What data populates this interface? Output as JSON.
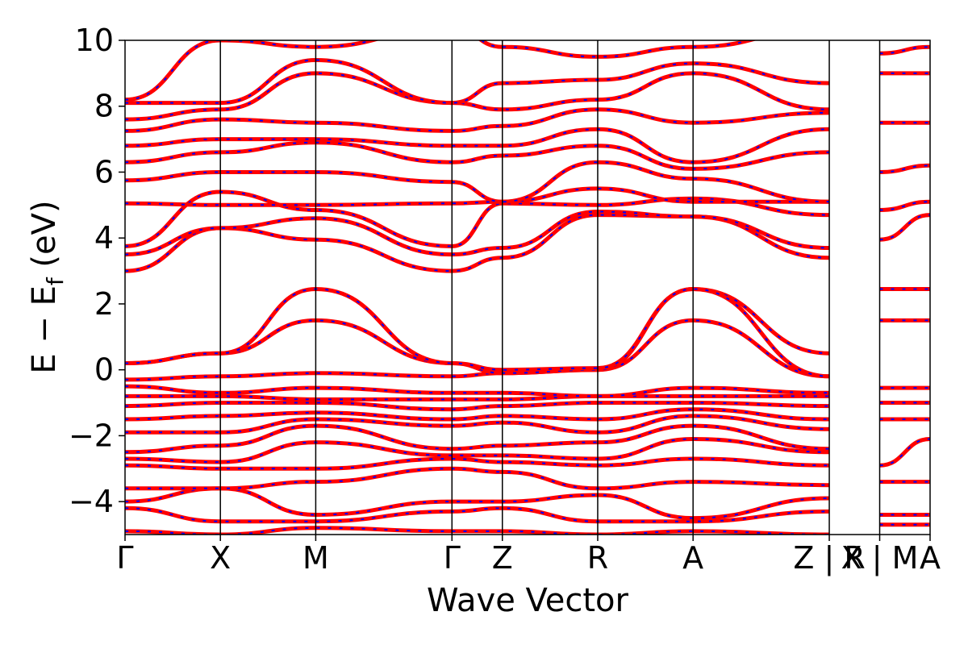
{
  "chart_data": {
    "type": "line",
    "title": "",
    "xlabel": "Wave Vector",
    "ylabel_parts": [
      "E − E",
      "f",
      " (eV)"
    ],
    "ylim": [
      -5,
      10
    ],
    "yticks": [
      "−4",
      "−2",
      "0",
      "2",
      "4",
      "6",
      "8",
      "10"
    ],
    "ytick_values": [
      -4,
      -2,
      0,
      2,
      4,
      6,
      8,
      10
    ],
    "k_path": {
      "positions": [
        0,
        0.7,
        1.4,
        2.4,
        2.77,
        3.47,
        4.17,
        5.17,
        5.54,
        5.91
      ],
      "labels": [
        "Γ",
        "X",
        "M",
        "Γ",
        "Z",
        "R",
        "A",
        "Z | R",
        "X | M",
        "A"
      ]
    },
    "line_colors": {
      "bands": "#ff0000",
      "overlay": "#0000ff"
    },
    "grid": false,
    "bands": [
      {
        "name": "b1",
        "points": [
          [
            0,
            -4.9
          ],
          [
            0.7,
            -5.0
          ],
          [
            1.4,
            -4.8
          ],
          [
            2.4,
            -4.9
          ],
          [
            2.77,
            -4.9
          ],
          [
            3.47,
            -5.0
          ],
          [
            4.17,
            -4.9
          ],
          [
            5.17,
            -5.0
          ]
        ]
      },
      {
        "name": "b2",
        "points": [
          [
            0,
            -4.2
          ],
          [
            0.7,
            -4.6
          ],
          [
            1.4,
            -4.6
          ],
          [
            2.4,
            -4.3
          ],
          [
            2.77,
            -4.2
          ],
          [
            3.47,
            -4.6
          ],
          [
            4.17,
            -4.6
          ],
          [
            5.17,
            -4.3
          ]
        ]
      },
      {
        "name": "b3",
        "points": [
          [
            0,
            -4.0
          ],
          [
            0.7,
            -3.6
          ],
          [
            1.4,
            -4.4
          ],
          [
            2.4,
            -4.0
          ],
          [
            2.77,
            -4.0
          ],
          [
            3.47,
            -3.8
          ],
          [
            4.17,
            -4.5
          ],
          [
            5.17,
            -3.9
          ]
        ]
      },
      {
        "name": "b4",
        "points": [
          [
            0,
            -3.6
          ],
          [
            0.7,
            -3.6
          ],
          [
            1.4,
            -3.4
          ],
          [
            2.4,
            -3.0
          ],
          [
            2.77,
            -3.1
          ],
          [
            3.47,
            -3.6
          ],
          [
            4.17,
            -3.4
          ],
          [
            5.17,
            -3.5
          ]
        ]
      },
      {
        "name": "b5",
        "points": [
          [
            0,
            -2.9
          ],
          [
            0.7,
            -3.0
          ],
          [
            1.4,
            -3.0
          ],
          [
            2.4,
            -2.7
          ],
          [
            2.77,
            -2.8
          ],
          [
            3.47,
            -2.9
          ],
          [
            4.17,
            -2.7
          ],
          [
            5.17,
            -2.9
          ]
        ]
      },
      {
        "name": "b6",
        "points": [
          [
            0,
            -2.7
          ],
          [
            0.7,
            -2.8
          ],
          [
            1.4,
            -2.2
          ],
          [
            2.4,
            -2.6
          ],
          [
            2.77,
            -2.6
          ],
          [
            3.47,
            -2.7
          ],
          [
            4.17,
            -2.1
          ],
          [
            5.17,
            -2.5
          ]
        ]
      },
      {
        "name": "b7",
        "points": [
          [
            0,
            -2.5
          ],
          [
            0.7,
            -2.3
          ],
          [
            1.4,
            -1.7
          ],
          [
            2.4,
            -2.4
          ],
          [
            2.77,
            -2.3
          ],
          [
            3.47,
            -2.2
          ],
          [
            4.17,
            -1.7
          ],
          [
            5.17,
            -2.4
          ]
        ]
      },
      {
        "name": "b8",
        "points": [
          [
            0,
            -1.9
          ],
          [
            0.7,
            -1.9
          ],
          [
            1.4,
            -1.5
          ],
          [
            2.4,
            -1.7
          ],
          [
            2.77,
            -1.6
          ],
          [
            3.47,
            -1.9
          ],
          [
            4.17,
            -1.4
          ],
          [
            5.17,
            -1.8
          ]
        ]
      },
      {
        "name": "b9",
        "points": [
          [
            0,
            -1.5
          ],
          [
            0.7,
            -1.4
          ],
          [
            1.4,
            -1.3
          ],
          [
            2.4,
            -1.5
          ],
          [
            2.77,
            -1.4
          ],
          [
            3.47,
            -1.5
          ],
          [
            4.17,
            -1.2
          ],
          [
            5.17,
            -1.5
          ]
        ]
      },
      {
        "name": "b10",
        "points": [
          [
            0,
            -1.1
          ],
          [
            0.7,
            -1.0
          ],
          [
            1.4,
            -1.0
          ],
          [
            2.4,
            -1.2
          ],
          [
            2.77,
            -1.1
          ],
          [
            3.47,
            -1.0
          ],
          [
            4.17,
            -1.0
          ],
          [
            5.17,
            -1.1
          ]
        ]
      },
      {
        "name": "b11",
        "points": [
          [
            0,
            -0.8
          ],
          [
            0.7,
            -0.8
          ],
          [
            1.4,
            -0.9
          ],
          [
            2.4,
            -0.9
          ],
          [
            2.77,
            -0.9
          ],
          [
            3.47,
            -0.8
          ],
          [
            4.17,
            -0.8
          ],
          [
            5.17,
            -0.8
          ]
        ]
      },
      {
        "name": "b12",
        "points": [
          [
            0,
            -0.5
          ],
          [
            0.7,
            -0.7
          ],
          [
            1.4,
            -0.55
          ],
          [
            2.4,
            -0.7
          ],
          [
            2.77,
            -0.7
          ],
          [
            3.47,
            -0.8
          ],
          [
            4.17,
            -0.55
          ],
          [
            5.17,
            -0.7
          ]
        ]
      },
      {
        "name": "b13",
        "points": [
          [
            0,
            -0.3
          ],
          [
            0.7,
            -0.2
          ],
          [
            1.4,
            -0.1
          ],
          [
            2.4,
            -0.2
          ],
          [
            2.77,
            -0.1
          ],
          [
            3.47,
            0.0
          ],
          [
            4.17,
            1.5
          ],
          [
            5.17,
            -0.2
          ]
        ]
      },
      {
        "name": "b14",
        "points": [
          [
            0,
            0.2
          ],
          [
            0.7,
            0.5
          ],
          [
            1.4,
            1.5
          ],
          [
            2.4,
            0.2
          ],
          [
            2.77,
            -0.1
          ],
          [
            3.47,
            0.0
          ],
          [
            4.17,
            2.45
          ],
          [
            5.17,
            0.5
          ]
        ]
      },
      {
        "name": "b15",
        "points": [
          [
            0,
            0.2
          ],
          [
            0.7,
            0.5
          ],
          [
            1.4,
            2.45
          ],
          [
            2.4,
            0.2
          ],
          [
            2.77,
            0.0
          ],
          [
            3.47,
            0.05
          ],
          [
            4.17,
            2.45
          ],
          [
            5.17,
            -0.2
          ]
        ]
      },
      {
        "name": "b16",
        "points": [
          [
            0,
            3.0
          ],
          [
            0.7,
            4.3
          ],
          [
            1.4,
            3.95
          ],
          [
            2.4,
            3.0
          ],
          [
            2.77,
            3.4
          ],
          [
            3.47,
            4.7
          ],
          [
            4.17,
            4.65
          ],
          [
            5.17,
            3.4
          ]
        ]
      },
      {
        "name": "b17",
        "points": [
          [
            0,
            3.5
          ],
          [
            0.7,
            4.3
          ],
          [
            1.4,
            4.6
          ],
          [
            2.4,
            3.5
          ],
          [
            2.77,
            3.7
          ],
          [
            3.47,
            4.8
          ],
          [
            4.17,
            4.65
          ],
          [
            5.17,
            3.7
          ]
        ]
      },
      {
        "name": "b18",
        "points": [
          [
            0,
            3.75
          ],
          [
            0.7,
            5.4
          ],
          [
            1.4,
            4.85
          ],
          [
            2.4,
            3.75
          ],
          [
            2.77,
            5.05
          ],
          [
            3.47,
            5.0
          ],
          [
            4.17,
            5.2
          ],
          [
            5.17,
            4.7
          ]
        ]
      },
      {
        "name": "b19",
        "points": [
          [
            0,
            5.05
          ],
          [
            0.7,
            5.0
          ],
          [
            1.4,
            5.0
          ],
          [
            2.4,
            5.05
          ],
          [
            2.77,
            5.1
          ],
          [
            3.47,
            5.5
          ],
          [
            4.17,
            5.1
          ],
          [
            5.17,
            5.1
          ]
        ]
      },
      {
        "name": "b20",
        "points": [
          [
            0,
            5.75
          ],
          [
            0.7,
            6.0
          ],
          [
            1.4,
            6.0
          ],
          [
            2.4,
            5.7
          ],
          [
            2.77,
            5.1
          ],
          [
            3.47,
            6.3
          ],
          [
            4.17,
            5.8
          ],
          [
            5.17,
            5.1
          ]
        ]
      },
      {
        "name": "b21",
        "points": [
          [
            0,
            6.3
          ],
          [
            0.7,
            6.6
          ],
          [
            1.4,
            6.9
          ],
          [
            2.4,
            6.3
          ],
          [
            2.77,
            6.5
          ],
          [
            3.47,
            6.8
          ],
          [
            4.17,
            6.1
          ],
          [
            5.17,
            6.6
          ]
        ]
      },
      {
        "name": "b22",
        "points": [
          [
            0,
            6.8
          ],
          [
            0.7,
            7.0
          ],
          [
            1.4,
            7.0
          ],
          [
            2.4,
            6.8
          ],
          [
            2.77,
            6.8
          ],
          [
            3.47,
            7.3
          ],
          [
            4.17,
            6.3
          ],
          [
            5.17,
            7.3
          ]
        ]
      },
      {
        "name": "b23",
        "points": [
          [
            0,
            7.25
          ],
          [
            0.7,
            7.6
          ],
          [
            1.4,
            7.5
          ],
          [
            2.4,
            7.25
          ],
          [
            2.77,
            7.4
          ],
          [
            3.47,
            7.9
          ],
          [
            4.17,
            7.5
          ],
          [
            5.17,
            7.8
          ]
        ]
      },
      {
        "name": "b24",
        "points": [
          [
            0,
            7.6
          ],
          [
            0.7,
            7.9
          ],
          [
            1.4,
            9.0
          ],
          [
            2.4,
            8.1
          ],
          [
            2.77,
            7.9
          ],
          [
            3.47,
            8.2
          ],
          [
            4.17,
            9.0
          ],
          [
            5.17,
            7.9
          ]
        ]
      },
      {
        "name": "b25",
        "points": [
          [
            0,
            8.1
          ],
          [
            0.7,
            8.1
          ],
          [
            1.4,
            9.4
          ],
          [
            2.4,
            8.1
          ],
          [
            2.77,
            8.7
          ],
          [
            3.47,
            8.8
          ],
          [
            4.17,
            9.3
          ],
          [
            5.17,
            8.7
          ]
        ]
      },
      {
        "name": "b26",
        "points": [
          [
            0,
            8.2
          ],
          [
            0.7,
            10.0
          ],
          [
            1.4,
            9.8
          ],
          [
            2.4,
            10.4
          ],
          [
            2.77,
            9.8
          ],
          [
            3.47,
            9.5
          ],
          [
            4.17,
            9.8
          ],
          [
            5.17,
            10.4
          ]
        ]
      },
      {
        "name": "r1",
        "points": [
          [
            5.54,
            -4.7
          ],
          [
            5.91,
            -4.7
          ]
        ]
      },
      {
        "name": "r2",
        "points": [
          [
            5.54,
            -4.4
          ],
          [
            5.91,
            -4.4
          ]
        ]
      },
      {
        "name": "r3",
        "points": [
          [
            5.54,
            -3.4
          ],
          [
            5.91,
            -3.4
          ]
        ]
      },
      {
        "name": "r4",
        "points": [
          [
            5.54,
            -2.9
          ],
          [
            5.91,
            -2.1
          ]
        ]
      },
      {
        "name": "r5",
        "points": [
          [
            5.54,
            -1.5
          ],
          [
            5.91,
            -1.5
          ]
        ]
      },
      {
        "name": "r6",
        "points": [
          [
            5.54,
            -1.0
          ],
          [
            5.91,
            -1.0
          ]
        ]
      },
      {
        "name": "r7",
        "points": [
          [
            5.54,
            -0.55
          ],
          [
            5.91,
            -0.55
          ]
        ]
      },
      {
        "name": "r8",
        "points": [
          [
            5.54,
            1.5
          ],
          [
            5.91,
            1.5
          ]
        ]
      },
      {
        "name": "r9",
        "points": [
          [
            5.54,
            2.45
          ],
          [
            5.91,
            2.45
          ]
        ]
      },
      {
        "name": "r10",
        "points": [
          [
            5.54,
            3.95
          ],
          [
            5.91,
            4.7
          ]
        ]
      },
      {
        "name": "r11",
        "points": [
          [
            5.54,
            4.85
          ],
          [
            5.91,
            5.1
          ]
        ]
      },
      {
        "name": "r12",
        "points": [
          [
            5.54,
            6.0
          ],
          [
            5.91,
            6.2
          ]
        ]
      },
      {
        "name": "r13",
        "points": [
          [
            5.54,
            7.5
          ],
          [
            5.91,
            7.5
          ]
        ]
      },
      {
        "name": "r14",
        "points": [
          [
            5.54,
            9.0
          ],
          [
            5.91,
            9.0
          ]
        ]
      },
      {
        "name": "r15",
        "points": [
          [
            5.54,
            9.6
          ],
          [
            5.91,
            9.8
          ]
        ]
      }
    ]
  }
}
